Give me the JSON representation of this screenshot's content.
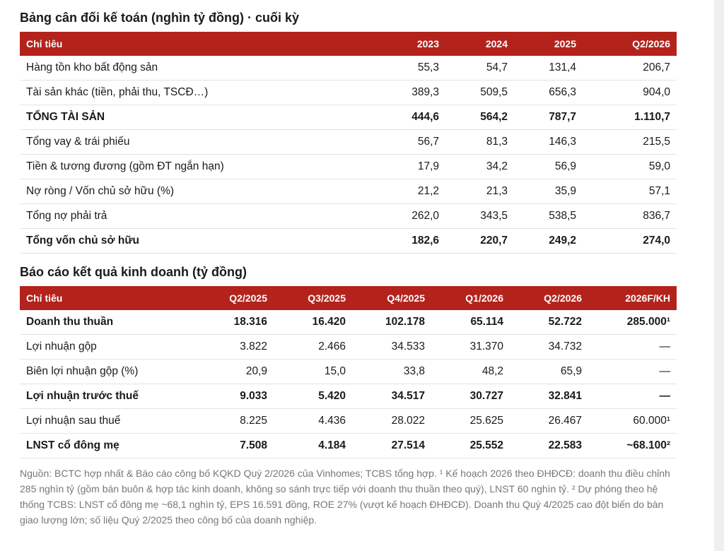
{
  "balance": {
    "title": "Bảng cân đối kế toán (nghìn tỷ đồng) · cuối kỳ",
    "header": [
      "Chỉ tiêu",
      "2023",
      "2024",
      "2025",
      "Q2/2026"
    ],
    "rows": [
      {
        "label": "Hàng tồn kho bất động sản",
        "values": [
          "55,3",
          "54,7",
          "131,4",
          "206,7"
        ]
      },
      {
        "label": "Tài sản khác (tiền, phải thu, TSCĐ…)",
        "values": [
          "389,3",
          "509,5",
          "656,3",
          "904,0"
        ]
      },
      {
        "label": "TỔNG TÀI SẢN",
        "values": [
          "444,6",
          "564,2",
          "787,7",
          "1.110,7"
        ],
        "bold": true
      },
      {
        "label": "Tổng vay & trái phiếu",
        "values": [
          "56,7",
          "81,3",
          "146,3",
          "215,5"
        ]
      },
      {
        "label": "Tiền & tương đương (gồm ĐT ngắn hạn)",
        "values": [
          "17,9",
          "34,2",
          "56,9",
          "59,0"
        ]
      },
      {
        "label": "Nợ ròng / Vốn chủ sở hữu (%)",
        "values": [
          "21,2",
          "21,3",
          "35,9",
          "57,1"
        ]
      },
      {
        "label": "Tổng nợ phải trả",
        "values": [
          "262,0",
          "343,5",
          "538,5",
          "836,7"
        ]
      },
      {
        "label": "Tổng vốn chủ sở hữu",
        "values": [
          "182,6",
          "220,7",
          "249,2",
          "274,0"
        ],
        "bold": true
      }
    ]
  },
  "income": {
    "title": "Báo cáo kết quả kinh doanh (tỷ đồng)",
    "header": [
      "Chỉ tiêu",
      "Q2/2025",
      "Q3/2025",
      "Q4/2025",
      "Q1/2026",
      "Q2/2026",
      "2026F/KH"
    ],
    "rows": [
      {
        "label": "Doanh thu thuần",
        "values": [
          "18.316",
          "16.420",
          "102.178",
          "65.114",
          "52.722",
          "285.000¹"
        ],
        "bold": true
      },
      {
        "label": "Lợi nhuận gộp",
        "values": [
          "3.822",
          "2.466",
          "34.533",
          "31.370",
          "34.732",
          "—"
        ]
      },
      {
        "label": "Biên lợi nhuận gộp (%)",
        "values": [
          "20,9",
          "15,0",
          "33,8",
          "48,2",
          "65,9",
          "—"
        ]
      },
      {
        "label": "Lợi nhuận trước thuế",
        "values": [
          "9.033",
          "5.420",
          "34.517",
          "30.727",
          "32.841",
          "—"
        ],
        "bold": true
      },
      {
        "label": "Lợi nhuận sau thuế",
        "values": [
          "8.225",
          "4.436",
          "28.022",
          "25.625",
          "26.467",
          "60.000¹"
        ]
      },
      {
        "label": "LNST cổ đông mẹ",
        "values": [
          "7.508",
          "4.184",
          "27.514",
          "25.552",
          "22.583",
          "~68.100²"
        ],
        "bold": true
      }
    ]
  },
  "footnote": "Nguồn: BCTC hợp nhất & Báo cáo công bố KQKD Quý 2/2026 của Vinhomes; TCBS tổng hợp. ¹ Kế hoạch 2026 theo ĐHĐCĐ: doanh thu điều chỉnh 285 nghìn tỷ (gồm bán buôn & hợp tác kinh doanh, không so sánh trực tiếp với doanh thu thuần theo quý), LNST 60 nghìn tỷ. ² Dự phóng theo hệ thống TCBS: LNST cổ đông mẹ ~68,1 nghìn tỷ, EPS 16.591 đồng, ROE 27% (vượt kế hoạch ĐHĐCĐ). Doanh thu Quý 4/2025 cao đột biến do bàn giao lượng lớn; số liệu Quý 2/2025 theo công bố của doanh nghiệp."
}
